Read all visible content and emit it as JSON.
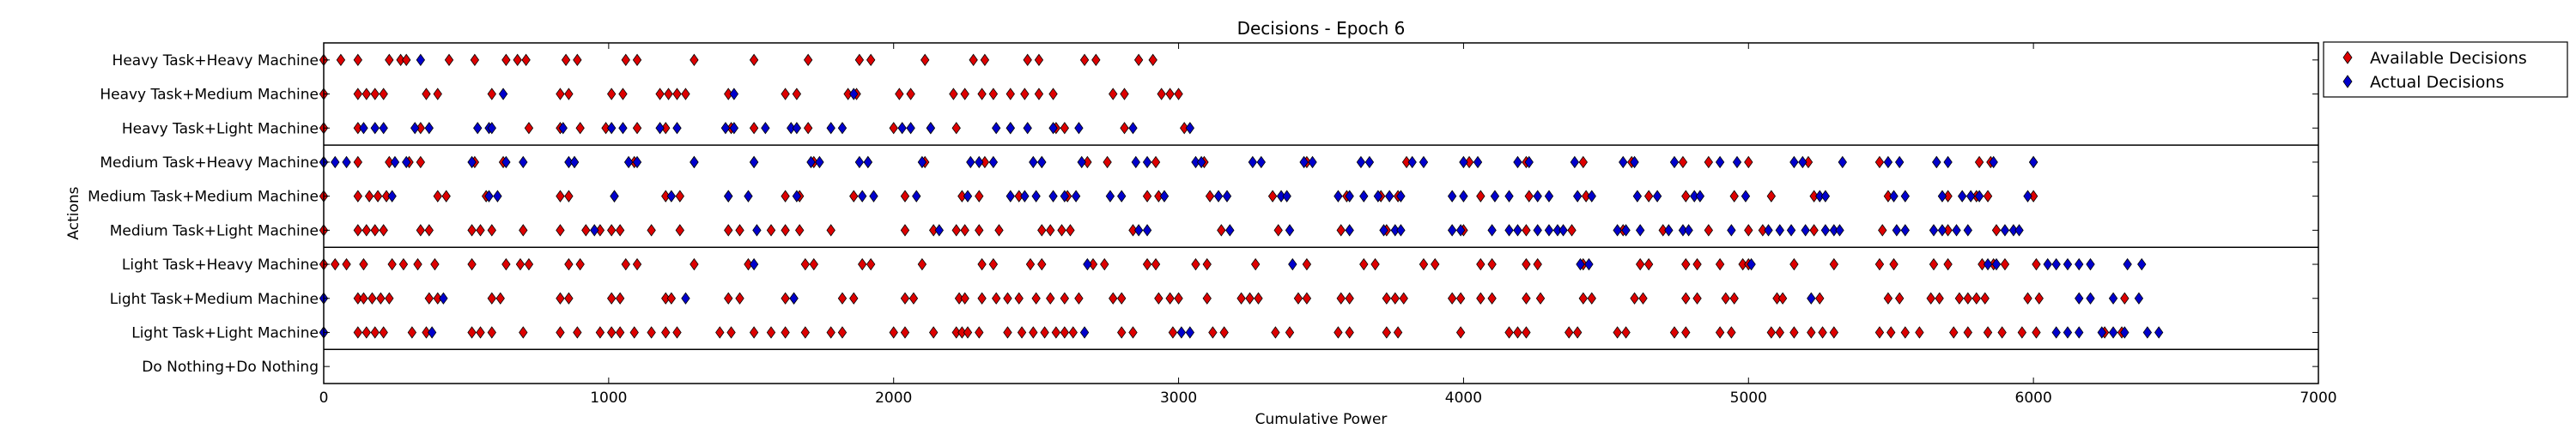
{
  "chart_data": {
    "type": "scatter",
    "title": "Decisions - Epoch 6",
    "xlabel": "Cumulative Power",
    "ylabel": "Actions",
    "xlim": [
      0,
      7000
    ],
    "xticks": [
      0,
      1000,
      2000,
      3000,
      4000,
      5000,
      6000,
      7000
    ],
    "categories": [
      "Heavy Task+Heavy Machine",
      "Heavy Task+Medium Machine",
      "Heavy Task+Light Machine",
      "Medium Task+Heavy Machine",
      "Medium Task+Medium Machine",
      "Medium Task+Light Machine",
      "Light Task+Heavy Machine",
      "Light Task+Medium Machine",
      "Light Task+Light Machine",
      "Do Nothing+Do Nothing"
    ],
    "group_separators_after": [
      "Heavy Task+Light Machine",
      "Medium Task+Light Machine",
      "Light Task+Light Machine"
    ],
    "legend_position": "outside-top-right",
    "series": [
      {
        "name": "Available Decisions",
        "color": "#dd0000",
        "points": {
          "Heavy Task+Heavy Machine": [
            0,
            60,
            120,
            230,
            270,
            290,
            440,
            530,
            640,
            680,
            710,
            850,
            890,
            1060,
            1100,
            1300,
            1510,
            1700,
            1880,
            1920,
            2110,
            2280,
            2320,
            2470,
            2510,
            2670,
            2710,
            2860,
            2910
          ],
          "Heavy Task+Medium Machine": [
            0,
            120,
            150,
            180,
            210,
            360,
            400,
            590,
            830,
            860,
            1010,
            1050,
            1180,
            1210,
            1240,
            1270,
            1420,
            1620,
            1660,
            1840,
            1870,
            2020,
            2060,
            2210,
            2250,
            2310,
            2350,
            2410,
            2460,
            2510,
            2560,
            2770,
            2810,
            2940,
            2970,
            3000
          ],
          "Heavy Task+Light Machine": [
            0,
            120,
            340,
            720,
            830,
            900,
            990,
            1100,
            1200,
            1430,
            1510,
            1700,
            2000,
            2130,
            2220,
            2410,
            2570,
            2600,
            2810,
            3020
          ],
          "Medium Task+Heavy Machine": [
            0,
            120,
            230,
            300,
            340,
            530,
            630,
            880,
            1090,
            1300,
            1510,
            1720,
            1910,
            2110,
            2320,
            2520,
            2680,
            2750,
            2920,
            3090,
            3450,
            3800,
            4020,
            4220,
            4420,
            4590,
            4770,
            4860,
            5000,
            5210,
            5460,
            5660,
            5810,
            5850,
            6000
          ],
          "Medium Task+Medium Machine": [
            0,
            120,
            160,
            190,
            220,
            400,
            430,
            570,
            830,
            860,
            1020,
            1200,
            1250,
            1420,
            1620,
            1670,
            1860,
            2040,
            2240,
            2300,
            2440,
            2610,
            2890,
            2930,
            3110,
            3330,
            3590,
            3710,
            3770,
            4060,
            4230,
            4430,
            4650,
            4780,
            4950,
            5080,
            5230,
            5490,
            5700,
            5800,
            5840,
            6000
          ],
          "Medium Task+Light Machine": [
            0,
            120,
            150,
            180,
            210,
            340,
            370,
            520,
            550,
            590,
            700,
            830,
            920,
            970,
            1010,
            1040,
            1150,
            1250,
            1420,
            1460,
            1570,
            1620,
            1670,
            1780,
            2040,
            2140,
            2220,
            2250,
            2300,
            2370,
            2520,
            2550,
            2590,
            2620,
            2840,
            3150,
            3350,
            3570,
            3730,
            4000,
            4220,
            4380,
            4560,
            4700,
            4860,
            5000,
            5050,
            5230,
            5470,
            5700,
            5870
          ],
          "Light Task+Heavy Machine": [
            0,
            40,
            80,
            140,
            240,
            280,
            330,
            390,
            520,
            640,
            690,
            720,
            860,
            900,
            1060,
            1100,
            1300,
            1490,
            1690,
            1720,
            1890,
            1920,
            2100,
            2310,
            2350,
            2480,
            2520,
            2700,
            2740,
            2890,
            2920,
            3060,
            3100,
            3270,
            3450,
            3650,
            3690,
            3860,
            3900,
            4060,
            4100,
            4220,
            4260,
            4420,
            4620,
            4650,
            4780,
            4820,
            4900,
            4980,
            5000,
            5160,
            5300,
            5460,
            5510,
            5650,
            5700,
            5820,
            5860,
            5900,
            6010
          ],
          "Light Task+Medium Machine": [
            120,
            140,
            170,
            200,
            230,
            370,
            400,
            590,
            620,
            830,
            860,
            1010,
            1040,
            1200,
            1220,
            1420,
            1460,
            1620,
            1650,
            1820,
            1860,
            2040,
            2070,
            2230,
            2250,
            2310,
            2360,
            2400,
            2440,
            2500,
            2550,
            2600,
            2650,
            2770,
            2800,
            2930,
            2970,
            3000,
            3100,
            3220,
            3250,
            3280,
            3420,
            3450,
            3570,
            3600,
            3730,
            3760,
            3790,
            3960,
            3990,
            4060,
            4100,
            4220,
            4270,
            4420,
            4450,
            4600,
            4630,
            4780,
            4820,
            4920,
            4950,
            5100,
            5120,
            5250,
            5490,
            5530,
            5640,
            5670,
            5740,
            5770,
            5800,
            5830,
            5980,
            6020,
            6320
          ],
          "Light Task+Light Machine": [
            0,
            120,
            150,
            180,
            210,
            310,
            360,
            520,
            550,
            590,
            700,
            830,
            890,
            970,
            1010,
            1040,
            1090,
            1150,
            1200,
            1240,
            1390,
            1430,
            1510,
            1570,
            1620,
            1690,
            1780,
            1820,
            2000,
            2040,
            2140,
            2220,
            2240,
            2260,
            2300,
            2400,
            2450,
            2490,
            2530,
            2570,
            2600,
            2630,
            2800,
            2840,
            2980,
            3120,
            3160,
            3340,
            3390,
            3560,
            3600,
            3730,
            3770,
            3990,
            4160,
            4190,
            4220,
            4370,
            4400,
            4540,
            4570,
            4740,
            4780,
            4900,
            4940,
            5080,
            5110,
            5160,
            5220,
            5260,
            5300,
            5460,
            5500,
            5550,
            5600,
            5720,
            5770,
            5840,
            5890,
            5960,
            6010,
            6250,
            6310
          ],
          "Do Nothing+Do Nothing": []
        }
      },
      {
        "name": "Actual Decisions",
        "color": "#0000cc",
        "points": {
          "Heavy Task+Heavy Machine": [
            340
          ],
          "Heavy Task+Medium Machine": [
            630,
            1440,
            1860
          ],
          "Heavy Task+Light Machine": [
            140,
            180,
            210,
            320,
            370,
            540,
            580,
            590,
            840,
            1010,
            1050,
            1180,
            1240,
            1410,
            1440,
            1550,
            1640,
            1660,
            1780,
            1820,
            2030,
            2060,
            2130,
            2360,
            2410,
            2470,
            2560,
            2650,
            2840,
            3040
          ],
          "Medium Task+Heavy Machine": [
            0,
            40,
            80,
            250,
            290,
            520,
            640,
            700,
            860,
            880,
            1070,
            1100,
            1300,
            1510,
            1710,
            1740,
            1880,
            1910,
            2100,
            2270,
            2300,
            2350,
            2490,
            2520,
            2660,
            2850,
            2890,
            3060,
            3080,
            3260,
            3290,
            3440,
            3470,
            3640,
            3670,
            3820,
            3860,
            4000,
            4050,
            4190,
            4230,
            4390,
            4560,
            4600,
            4740,
            4900,
            4960,
            5160,
            5190,
            5330,
            5490,
            5530,
            5660,
            5700,
            5860,
            6000
          ],
          "Medium Task+Medium Machine": [
            240,
            580,
            610,
            1020,
            1220,
            1420,
            1490,
            1660,
            1890,
            1930,
            2080,
            2260,
            2410,
            2460,
            2500,
            2560,
            2600,
            2640,
            2760,
            2800,
            2950,
            3140,
            3170,
            3360,
            3380,
            3560,
            3600,
            3650,
            3700,
            3740,
            3780,
            3960,
            4000,
            4110,
            4160,
            4260,
            4300,
            4400,
            4450,
            4610,
            4680,
            4810,
            4830,
            4990,
            5250,
            5270,
            5510,
            5550,
            5680,
            5750,
            5780,
            5810,
            5980
          ],
          "Medium Task+Light Machine": [
            950,
            1520,
            2160,
            2860,
            2890,
            3180,
            3390,
            3600,
            3720,
            3760,
            3780,
            3960,
            3990,
            4100,
            4160,
            4190,
            4260,
            4300,
            4330,
            4350,
            4540,
            4570,
            4620,
            4720,
            4770,
            4790,
            4940,
            5070,
            5110,
            5150,
            5200,
            5270,
            5300,
            5320,
            5520,
            5550,
            5650,
            5680,
            5730,
            5770,
            5900,
            5930,
            5950
          ],
          "Light Task+Heavy Machine": [
            1510,
            2680,
            3400,
            4410,
            4440,
            5010,
            5840,
            5870,
            6050,
            6080,
            6120,
            6160,
            6200,
            6330,
            6380
          ],
          "Light Task+Medium Machine": [
            0,
            420,
            1270,
            1650,
            5220,
            6160,
            6200,
            6280,
            6370
          ],
          "Light Task+Light Machine": [
            0,
            380,
            3010,
            3040,
            2670,
            6080,
            6120,
            6160,
            6240,
            6280,
            6320,
            6400,
            6440
          ],
          "Do Nothing+Do Nothing": []
        }
      }
    ]
  }
}
